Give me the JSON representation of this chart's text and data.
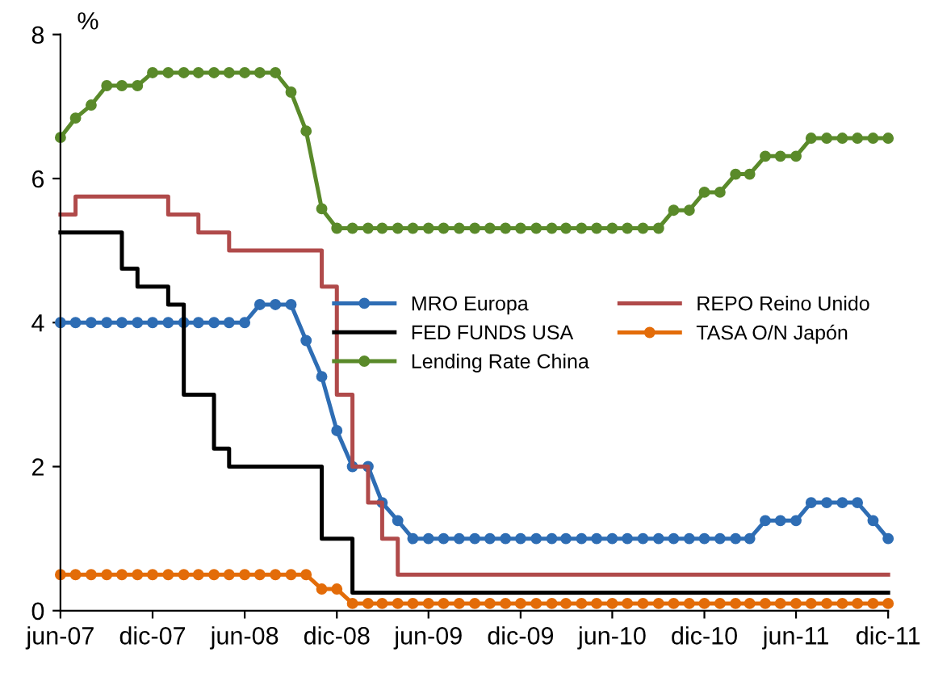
{
  "chart_data": {
    "type": "line",
    "ylabel": "%",
    "x": [
      "2007-06",
      "2007-07",
      "2007-08",
      "2007-09",
      "2007-10",
      "2007-11",
      "2007-12",
      "2008-01",
      "2008-02",
      "2008-03",
      "2008-04",
      "2008-05",
      "2008-06",
      "2008-07",
      "2008-08",
      "2008-09",
      "2008-10",
      "2008-11",
      "2008-12",
      "2009-01",
      "2009-02",
      "2009-03",
      "2009-04",
      "2009-05",
      "2009-06",
      "2009-07",
      "2009-08",
      "2009-09",
      "2009-10",
      "2009-11",
      "2009-12",
      "2010-01",
      "2010-02",
      "2010-03",
      "2010-04",
      "2010-05",
      "2010-06",
      "2010-07",
      "2010-08",
      "2010-09",
      "2010-10",
      "2010-11",
      "2010-12",
      "2011-01",
      "2011-02",
      "2011-03",
      "2011-04",
      "2011-05",
      "2011-06",
      "2011-07",
      "2011-08",
      "2011-09",
      "2011-10",
      "2011-11",
      "2011-12"
    ],
    "series": [
      {
        "name": "MRO Europa",
        "color": "#2e6db4",
        "marker": "circle",
        "values": [
          4.0,
          4.0,
          4.0,
          4.0,
          4.0,
          4.0,
          4.0,
          4.0,
          4.0,
          4.0,
          4.0,
          4.0,
          4.0,
          4.25,
          4.25,
          4.25,
          3.75,
          3.25,
          2.5,
          2.0,
          2.0,
          1.5,
          1.25,
          1.0,
          1.0,
          1.0,
          1.0,
          1.0,
          1.0,
          1.0,
          1.0,
          1.0,
          1.0,
          1.0,
          1.0,
          1.0,
          1.0,
          1.0,
          1.0,
          1.0,
          1.0,
          1.0,
          1.0,
          1.0,
          1.0,
          1.0,
          1.25,
          1.25,
          1.25,
          1.5,
          1.5,
          1.5,
          1.5,
          1.25,
          1.0
        ]
      },
      {
        "name": "REPO Reino Unido",
        "color": "#b04a4a",
        "type": "step",
        "marker": "none",
        "values": [
          5.5,
          5.75,
          5.75,
          5.75,
          5.75,
          5.75,
          5.75,
          5.5,
          5.5,
          5.25,
          5.25,
          5.0,
          5.0,
          5.0,
          5.0,
          5.0,
          5.0,
          4.5,
          3.0,
          2.0,
          1.5,
          1.0,
          0.5,
          0.5,
          0.5,
          0.5,
          0.5,
          0.5,
          0.5,
          0.5,
          0.5,
          0.5,
          0.5,
          0.5,
          0.5,
          0.5,
          0.5,
          0.5,
          0.5,
          0.5,
          0.5,
          0.5,
          0.5,
          0.5,
          0.5,
          0.5,
          0.5,
          0.5,
          0.5,
          0.5,
          0.5,
          0.5,
          0.5,
          0.5,
          0.5
        ]
      },
      {
        "name": "FED FUNDS USA",
        "color": "#000000",
        "type": "step",
        "marker": "none",
        "values": [
          5.25,
          5.25,
          5.25,
          5.25,
          4.75,
          4.5,
          4.5,
          4.25,
          3.0,
          3.0,
          2.25,
          2.0,
          2.0,
          2.0,
          2.0,
          2.0,
          2.0,
          1.0,
          1.0,
          0.25,
          0.25,
          0.25,
          0.25,
          0.25,
          0.25,
          0.25,
          0.25,
          0.25,
          0.25,
          0.25,
          0.25,
          0.25,
          0.25,
          0.25,
          0.25,
          0.25,
          0.25,
          0.25,
          0.25,
          0.25,
          0.25,
          0.25,
          0.25,
          0.25,
          0.25,
          0.25,
          0.25,
          0.25,
          0.25,
          0.25,
          0.25,
          0.25,
          0.25,
          0.25,
          0.25
        ]
      },
      {
        "name": "TASA O/N Japón",
        "color": "#e36c09",
        "marker": "circle",
        "values": [
          0.5,
          0.5,
          0.5,
          0.5,
          0.5,
          0.5,
          0.5,
          0.5,
          0.5,
          0.5,
          0.5,
          0.5,
          0.5,
          0.5,
          0.5,
          0.5,
          0.5,
          0.3,
          0.3,
          0.1,
          0.1,
          0.1,
          0.1,
          0.1,
          0.1,
          0.1,
          0.1,
          0.1,
          0.1,
          0.1,
          0.1,
          0.1,
          0.1,
          0.1,
          0.1,
          0.1,
          0.1,
          0.1,
          0.1,
          0.1,
          0.1,
          0.1,
          0.1,
          0.1,
          0.1,
          0.1,
          0.1,
          0.1,
          0.1,
          0.1,
          0.1,
          0.1,
          0.1,
          0.1,
          0.1
        ]
      },
      {
        "name": "Lending Rate China",
        "color": "#5a8a2a",
        "marker": "circle",
        "values": [
          6.57,
          6.84,
          7.02,
          7.29,
          7.29,
          7.29,
          7.47,
          7.47,
          7.47,
          7.47,
          7.47,
          7.47,
          7.47,
          7.47,
          7.47,
          7.2,
          6.66,
          5.58,
          5.31,
          5.31,
          5.31,
          5.31,
          5.31,
          5.31,
          5.31,
          5.31,
          5.31,
          5.31,
          5.31,
          5.31,
          5.31,
          5.31,
          5.31,
          5.31,
          5.31,
          5.31,
          5.31,
          5.31,
          5.31,
          5.31,
          5.56,
          5.56,
          5.81,
          5.81,
          6.06,
          6.06,
          6.31,
          6.31,
          6.31,
          6.56,
          6.56,
          6.56,
          6.56,
          6.56,
          6.56
        ]
      }
    ],
    "xlim": [
      "2007-06",
      "2011-12"
    ],
    "xticks": [
      {
        "value": "2007-06",
        "label": "jun-07"
      },
      {
        "value": "2007-12",
        "label": "dic-07"
      },
      {
        "value": "2008-06",
        "label": "jun-08"
      },
      {
        "value": "2008-12",
        "label": "dic-08"
      },
      {
        "value": "2009-06",
        "label": "jun-09"
      },
      {
        "value": "2009-12",
        "label": "dic-09"
      },
      {
        "value": "2010-06",
        "label": "jun-10"
      },
      {
        "value": "2010-12",
        "label": "dic-10"
      },
      {
        "value": "2011-06",
        "label": "jun-11"
      },
      {
        "value": "2011-12",
        "label": "dic-11"
      }
    ],
    "ylim": [
      0,
      8
    ],
    "yticks": [
      0,
      2,
      4,
      6,
      8
    ],
    "grid": false,
    "legend": "right"
  }
}
